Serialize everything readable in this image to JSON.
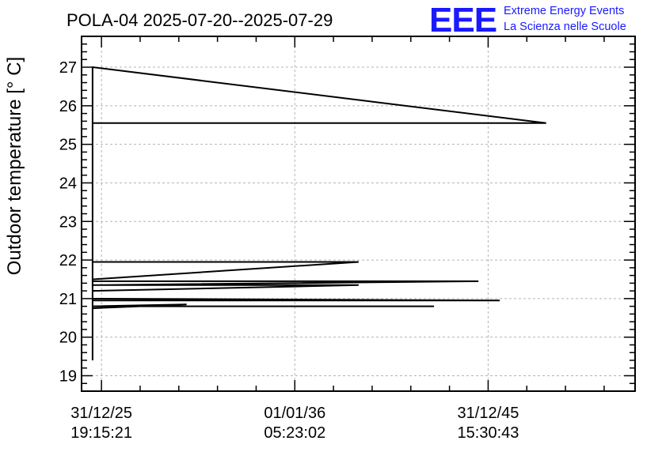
{
  "title": "POLA-04 2025-07-20--2025-07-29",
  "logo": {
    "mark": "EEE",
    "line1": "Extreme Energy Events",
    "line2": "La Scienza nelle Scuole",
    "color": "#1a1aff"
  },
  "chart_data": {
    "type": "line",
    "title": "POLA-04 2025-07-20--2025-07-29",
    "xlabel": "",
    "ylabel": "Outdoor temperature [° C]",
    "grid": true,
    "xlim": [
      -1.03,
      27.6
    ],
    "ylim": [
      18.6,
      27.8
    ],
    "yticks": [
      19,
      20,
      21,
      22,
      23,
      24,
      25,
      26,
      27
    ],
    "xticks": [
      {
        "x": 0,
        "line1": "31/12/25",
        "line2": "19:15:21"
      },
      {
        "x": 10,
        "line1": "01/01/36",
        "line2": "05:23:02"
      },
      {
        "x": 20,
        "line1": "31/12/45",
        "line2": "15:30:43"
      }
    ],
    "x_unit": "years after the first x tick",
    "series": [
      {
        "x": [
          -0.46,
          -0.46,
          -0.46,
          -0.46,
          -0.46,
          -0.46,
          -0.46,
          23.0,
          -0.46,
          -0.46,
          -0.46,
          13.3,
          -0.46,
          -0.46,
          19.5,
          -0.46,
          13.3,
          -0.46,
          -0.46,
          20.6,
          -0.46,
          -0.46,
          17.2,
          -0.46,
          4.4,
          -0.46,
          -0.46,
          -0.46
        ],
        "y": [
          19.4,
          27.0,
          25.9,
          26.6,
          25.6,
          27.0,
          27.0,
          25.55,
          25.55,
          21.95,
          21.95,
          21.95,
          21.5,
          21.45,
          21.45,
          21.35,
          21.35,
          21.2,
          21.0,
          20.95,
          20.95,
          20.8,
          20.8,
          20.8,
          20.85,
          20.75,
          20.6,
          20.8
        ]
      }
    ]
  }
}
